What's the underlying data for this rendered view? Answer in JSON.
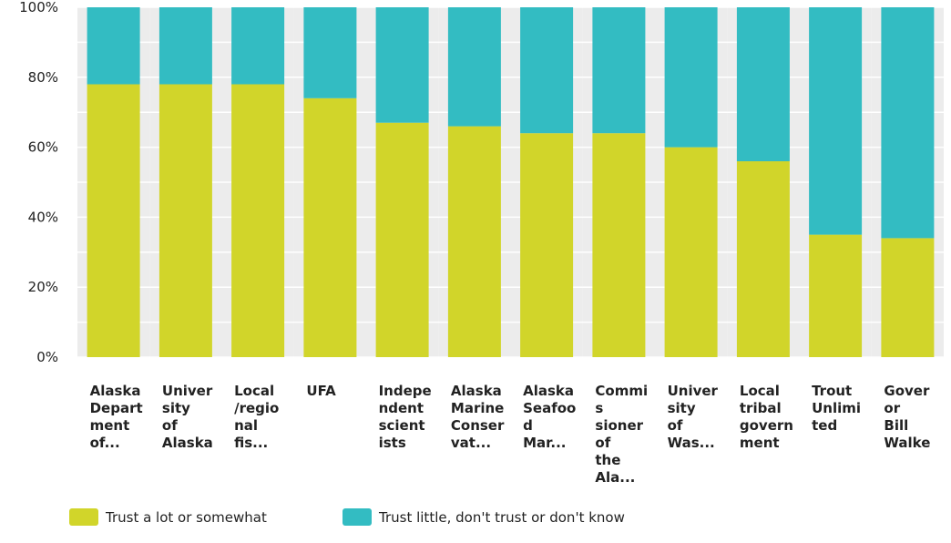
{
  "chart_data": {
    "type": "bar",
    "stacked": true,
    "percent": true,
    "categories": [
      "Alaska Depart ment of...",
      "Univer sity of Alaska",
      "Local /regio nal fis...",
      "UFA",
      "Indepe ndent scient ists",
      "Alaska Marine Conser vat...",
      "Alaska Seafoo d Mar...",
      "Commis sioner of the Ala...",
      "Univer sity of Was...",
      "Local tribal govern ment",
      "Trout Unlimi ted",
      "Gover or Bill Walke"
    ],
    "category_lines": [
      [
        "Alaska",
        "Depart",
        "ment",
        "of..."
      ],
      [
        "Univer",
        "sity",
        "of",
        "Alaska"
      ],
      [
        "Local",
        "/regio",
        "nal",
        "fis..."
      ],
      [
        "UFA"
      ],
      [
        "Indepe",
        "ndent",
        "scient",
        "ists"
      ],
      [
        "Alaska",
        "Marine",
        "Conser",
        "vat..."
      ],
      [
        "Alaska",
        "Seafoo",
        "d",
        "Mar..."
      ],
      [
        "Commis",
        "sioner",
        "of",
        "the",
        "Ala..."
      ],
      [
        "Univer",
        "sity",
        "of",
        "Was..."
      ],
      [
        "Local",
        "tribal",
        "govern",
        "ment"
      ],
      [
        "Trout",
        "Unlimi",
        "ted"
      ],
      [
        "Gover",
        "or",
        "Bill",
        "Walke"
      ]
    ],
    "series": [
      {
        "name": "Trust a lot or somewhat",
        "color": "#d1d52a",
        "values": [
          78,
          78,
          78,
          74,
          67,
          66,
          64,
          64,
          60,
          56,
          35,
          34
        ]
      },
      {
        "name": "Trust little, don't trust or don't know",
        "color": "#33bcc2",
        "values": [
          22,
          22,
          22,
          26,
          33,
          34,
          36,
          36,
          40,
          44,
          65,
          66
        ]
      }
    ],
    "yticks": [
      "0%",
      "20%",
      "40%",
      "60%",
      "80%",
      "100%"
    ],
    "ylim": [
      0,
      100
    ],
    "grid": true,
    "legend_position": "bottom-left",
    "xlabel": "",
    "ylabel": ""
  }
}
